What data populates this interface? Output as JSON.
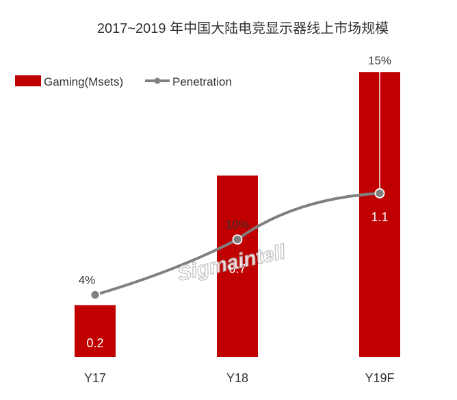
{
  "chart_data": {
    "type": "bar",
    "title": "2017~2019 年中国大陆电竞显示器线上市场规模",
    "categories": [
      "Y17",
      "Y18",
      "Y19F"
    ],
    "series": [
      {
        "name": "Gaming(Msets)",
        "kind": "bar",
        "values": [
          0.2,
          0.7,
          1.1
        ],
        "labels": [
          "0.2",
          "0.7",
          "1.1"
        ],
        "color": "#c00000"
      },
      {
        "name": "Penetration",
        "kind": "line",
        "values": [
          4,
          10,
          15
        ],
        "labels": [
          "4%",
          "10%",
          "15%"
        ],
        "color": "#808080"
      }
    ],
    "legend_position": "top-left",
    "grid": false,
    "watermark": "Sigmaintell"
  }
}
